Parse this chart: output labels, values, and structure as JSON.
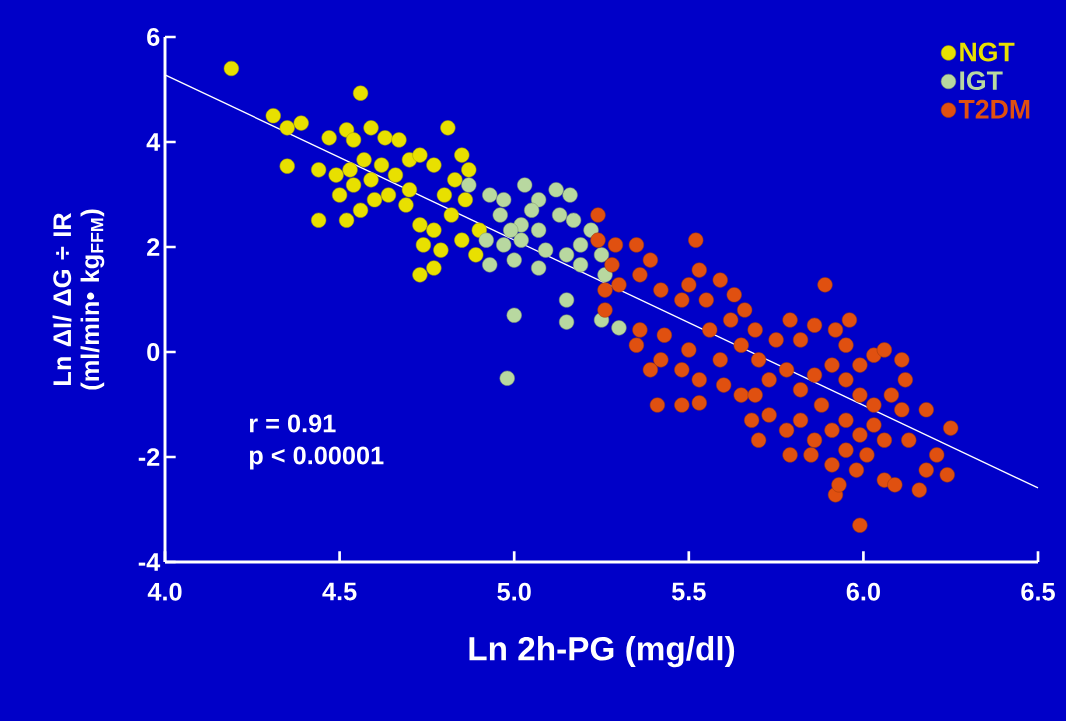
{
  "chart_data": {
    "type": "scatter",
    "xlabel": "Ln 2h-PG (mg/dl)",
    "ylabel": "Ln ΔI/ ΔG ÷ IR (ml/min• kg$_{FFM}$)",
    "xlim": [
      4.0,
      6.5
    ],
    "xticks": [
      {
        "value": 4.0,
        "label": "4.0"
      },
      {
        "value": 4.5,
        "label": "4.5"
      },
      {
        "value": 5.0,
        "label": "5.0"
      },
      {
        "value": 5.5,
        "label": "5.5"
      },
      {
        "value": 6.0,
        "label": "6.0"
      },
      {
        "value": 6.5,
        "label": "6.5"
      }
    ],
    "ylim": [
      -4,
      6
    ],
    "yticks": [
      -4,
      -2,
      0,
      2,
      4,
      6
    ],
    "legend": "top right",
    "marker": "circle",
    "annotations": [
      "r = 0.91",
      "p < 0.00001"
    ],
    "series": [
      {
        "name": "NGT",
        "color": "#e8e000",
        "x": [
          4.19,
          4.31,
          4.35,
          4.39,
          4.35,
          4.56,
          4.47,
          4.52,
          4.54,
          4.59,
          4.63,
          4.67,
          4.44,
          4.49,
          4.53,
          4.57,
          4.62,
          4.66,
          4.7,
          4.73,
          4.77,
          4.81,
          4.85,
          4.44,
          4.52,
          4.56,
          4.6,
          4.64,
          4.69,
          4.73,
          4.77,
          4.82,
          4.86,
          4.74,
          4.79,
          4.76,
          4.73,
          4.77,
          4.85,
          4.89,
          4.54,
          4.59,
          4.7,
          4.5,
          4.83,
          4.87,
          4.9,
          4.8
        ],
        "values": [
          5.4,
          4.5,
          4.27,
          4.36,
          3.54,
          4.93,
          4.08,
          4.23,
          4.04,
          4.27,
          4.08,
          4.04,
          3.47,
          3.37,
          3.47,
          3.66,
          3.56,
          3.37,
          3.66,
          3.75,
          3.56,
          4.27,
          3.75,
          2.51,
          2.51,
          2.7,
          2.9,
          2.99,
          2.8,
          2.42,
          2.32,
          2.61,
          2.9,
          2.04,
          1.94,
          null,
          1.47,
          1.6,
          2.13,
          1.85,
          3.18,
          3.28,
          3.09,
          2.99,
          3.28,
          3.47,
          2.32,
          2.99
        ]
      },
      {
        "name": "IGT",
        "color": "#b8d8a0",
        "x": [
          4.87,
          4.93,
          4.97,
          5.03,
          5.07,
          5.12,
          5.16,
          4.96,
          5.02,
          5.07,
          5.13,
          5.17,
          5.22,
          4.92,
          4.97,
          5.02,
          5.09,
          5.15,
          5.19,
          5.25,
          4.93,
          5.0,
          5.07,
          5.19,
          5.26,
          5.15,
          5.15,
          5.0,
          4.98,
          5.25,
          5.3,
          5.12,
          5.05,
          4.99
        ],
        "values": [
          3.18,
          2.99,
          2.9,
          3.18,
          2.9,
          null,
          2.99,
          2.61,
          2.42,
          2.32,
          2.61,
          2.51,
          2.32,
          2.13,
          2.04,
          2.13,
          1.94,
          1.85,
          2.04,
          1.85,
          1.66,
          1.75,
          1.6,
          1.66,
          1.47,
          0.99,
          0.57,
          0.7,
          -0.5,
          0.61,
          0.46,
          3.09,
          2.7,
          2.32
        ]
      },
      {
        "name": "T2DM",
        "color": "#e05010",
        "x": [
          5.24,
          5.24,
          5.28,
          5.29,
          5.35,
          5.3,
          5.26,
          5.26,
          5.36,
          5.39,
          5.42,
          5.36,
          5.35,
          5.43,
          5.48,
          5.52,
          5.53,
          5.5,
          5.55,
          5.59,
          5.63,
          5.66,
          5.62,
          5.56,
          5.5,
          5.48,
          5.53,
          5.48,
          5.53,
          5.59,
          5.65,
          5.69,
          5.7,
          5.75,
          5.79,
          5.82,
          5.86,
          5.89,
          5.92,
          5.95,
          5.96,
          5.73,
          5.78,
          5.82,
          5.86,
          5.91,
          5.95,
          5.99,
          6.03,
          6.06,
          5.99,
          6.03,
          6.08,
          6.12,
          6.11,
          5.73,
          5.78,
          5.82,
          5.86,
          5.91,
          5.95,
          5.99,
          6.03,
          6.06,
          5.79,
          5.85,
          5.91,
          5.95,
          5.98,
          5.92,
          5.93,
          5.99,
          6.01,
          6.06,
          6.09,
          6.16,
          6.18,
          6.21,
          6.24,
          6.25,
          6.18,
          6.13,
          5.7,
          5.68,
          5.65,
          5.6,
          5.69,
          5.41,
          5.88,
          6.11,
          5.42,
          5.39
        ],
        "values": [
          2.61,
          2.13,
          1.66,
          2.04,
          2.04,
          1.28,
          1.18,
          0.8,
          1.47,
          1.75,
          1.18,
          0.42,
          0.13,
          0.32,
          0.99,
          2.13,
          1.56,
          1.28,
          0.99,
          1.37,
          1.09,
          0.8,
          0.61,
          0.42,
          0.04,
          -0.34,
          -0.53,
          -1.01,
          -0.97,
          -0.15,
          0.13,
          0.42,
          -0.15,
          0.23,
          0.61,
          0.23,
          0.51,
          1.28,
          0.42,
          0.13,
          0.61,
          -0.53,
          -0.34,
          -0.72,
          -0.44,
          -0.25,
          -0.53,
          -0.25,
          -0.06,
          0.04,
          -0.82,
          -1.01,
          -0.82,
          -0.53,
          -1.1,
          -1.2,
          -1.49,
          -1.3,
          -1.68,
          -1.49,
          -1.3,
          -1.58,
          -1.39,
          -1.68,
          -1.96,
          -1.96,
          -2.15,
          -1.87,
          -2.25,
          -2.72,
          -2.53,
          -3.3,
          -1.96,
          -2.44,
          -2.53,
          -2.63,
          -2.25,
          -1.96,
          -2.34,
          -1.45,
          -1.1,
          -1.68,
          -1.68,
          -1.3,
          -0.82,
          -0.63,
          -0.82,
          -1.01,
          -1.01,
          -0.15,
          -0.15,
          -0.34
        ]
      },
      {
        "type": "line",
        "marker": "none",
        "color": "#ffffff",
        "x": [
          4.0,
          6.5
        ],
        "values": [
          5.28,
          -2.59
        ]
      }
    ]
  }
}
